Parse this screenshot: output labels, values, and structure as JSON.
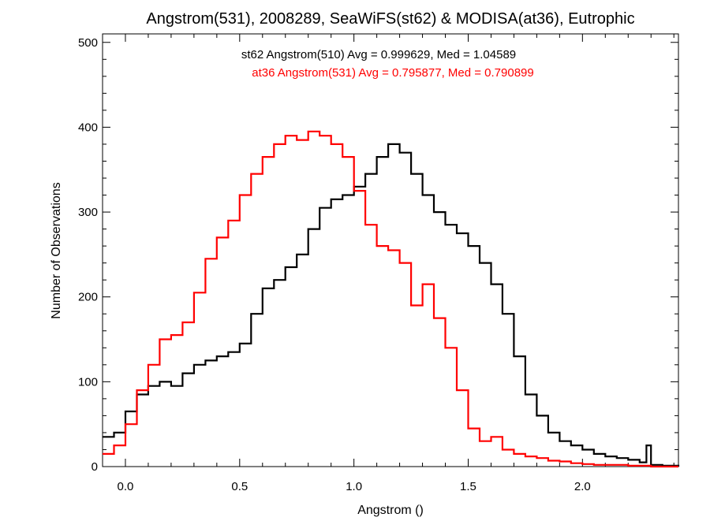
{
  "chart_data": {
    "type": "line",
    "title": "Angstrom(531), 2008289, SeaWiFS(st62) & MODISA(at36), Eutrophic",
    "xlabel": "Angstrom ()",
    "ylabel": "Number of Observations",
    "xlim": [
      -0.1,
      2.42
    ],
    "ylim": [
      0,
      510
    ],
    "x_ticks": [
      0.0,
      0.5,
      1.0,
      1.5,
      2.0
    ],
    "x_tick_labels": [
      "0.0",
      "0.5",
      "1.0",
      "1.5",
      "2.0"
    ],
    "y_ticks": [
      0,
      100,
      200,
      300,
      400,
      500
    ],
    "y_tick_labels": [
      "0",
      "100",
      "200",
      "300",
      "400",
      "500"
    ],
    "grid": false,
    "step": true,
    "annotations": [
      {
        "text": "st62 Angstrom(510) Avg = 0.999629, Med = 1.04589",
        "color": "#000000"
      },
      {
        "text": "at36 Angstrom(531) Avg = 0.795877, Med = 0.790899",
        "color": "#ff0000"
      }
    ],
    "series": [
      {
        "color": "#000000",
        "x": [
          -0.1,
          -0.05,
          0.0,
          0.05,
          0.1,
          0.15,
          0.2,
          0.25,
          0.3,
          0.35,
          0.4,
          0.45,
          0.5,
          0.55,
          0.6,
          0.65,
          0.7,
          0.75,
          0.8,
          0.85,
          0.9,
          0.95,
          1.0,
          1.05,
          1.1,
          1.15,
          1.2,
          1.25,
          1.3,
          1.35,
          1.4,
          1.45,
          1.5,
          1.55,
          1.6,
          1.65,
          1.7,
          1.75,
          1.8,
          1.85,
          1.9,
          1.95,
          2.0,
          2.05,
          2.1,
          2.15,
          2.2,
          2.25,
          2.28,
          2.3,
          2.35,
          2.42
        ],
        "y": [
          35,
          40,
          65,
          85,
          95,
          100,
          95,
          110,
          120,
          125,
          130,
          135,
          145,
          180,
          210,
          220,
          235,
          250,
          280,
          305,
          315,
          320,
          330,
          345,
          365,
          380,
          370,
          345,
          320,
          300,
          285,
          275,
          260,
          240,
          215,
          180,
          130,
          85,
          60,
          40,
          30,
          25,
          20,
          15,
          12,
          10,
          8,
          5,
          25,
          2,
          1,
          0
        ]
      },
      {
        "color": "#ff0000",
        "x": [
          -0.1,
          -0.05,
          0.0,
          0.05,
          0.1,
          0.15,
          0.2,
          0.25,
          0.3,
          0.35,
          0.4,
          0.45,
          0.5,
          0.55,
          0.6,
          0.65,
          0.7,
          0.75,
          0.8,
          0.85,
          0.9,
          0.95,
          1.0,
          1.05,
          1.1,
          1.15,
          1.2,
          1.25,
          1.3,
          1.35,
          1.4,
          1.45,
          1.5,
          1.55,
          1.6,
          1.65,
          1.7,
          1.75,
          1.8,
          1.85,
          1.9,
          1.95,
          2.0,
          2.05,
          2.1,
          2.2,
          2.3,
          2.42
        ],
        "y": [
          15,
          25,
          50,
          90,
          120,
          150,
          155,
          170,
          205,
          245,
          270,
          290,
          320,
          345,
          365,
          380,
          390,
          385,
          395,
          390,
          380,
          365,
          325,
          285,
          260,
          255,
          240,
          190,
          215,
          175,
          140,
          90,
          45,
          30,
          35,
          20,
          15,
          12,
          10,
          7,
          6,
          4,
          3,
          2,
          2,
          1,
          0,
          0
        ]
      }
    ]
  }
}
